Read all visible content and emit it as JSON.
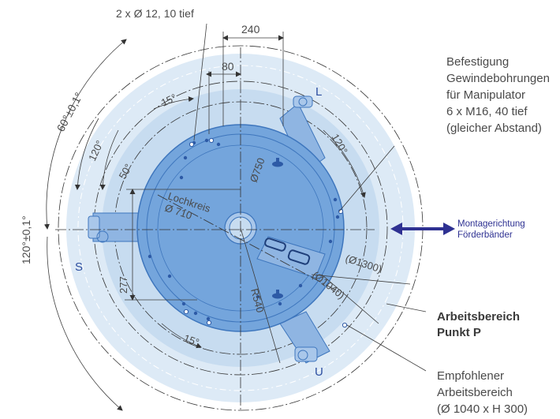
{
  "colors": {
    "outer_area": "#ddeaf6",
    "inner_area": "#c7dcf0",
    "base_plate": "#74a5dc",
    "base_edge": "#3e76bd",
    "arm": "#8fb5e2",
    "accent_letters": "#2c4ea0",
    "arrow": "#2e3192"
  },
  "dimensions": {
    "holes": "2 x Ø 12, 10 tief",
    "d240": "240",
    "d80": "80",
    "angle_15_top": "15°",
    "angle_60": "60°±0,1°",
    "angle_120_inner": "120°",
    "angle_50": "50°",
    "angle_120_outer": "120°±0,1°",
    "angle_120_right": "120°",
    "d750": "Ø750",
    "lochkreis": "Lochkreis",
    "d710": "Ø 710",
    "d277": "277",
    "r540": "R540",
    "d1300": "(Ø1300)",
    "d1040": "(Ø1040)",
    "angle_15_bottom": "15°"
  },
  "axis_labels": {
    "L": "L",
    "S": "S",
    "U": "U"
  },
  "annotations": {
    "befestigung": [
      "Befestigung",
      "Gewindebohrungen",
      "für Manipulator",
      "6 x M16, 40 tief",
      "(gleicher Abstand)"
    ],
    "montage": [
      "Montagerichtung",
      "Förderbänder"
    ],
    "arbeitsbereich_p": [
      "Arbeitsbereich",
      "Punkt P"
    ],
    "empfohlen": [
      "Empfohlener",
      "Arbeitsbereich",
      "(Ø 1040 x H 300)"
    ]
  },
  "icons": {
    "montage_arrow": "double-arrow-horizontal-icon"
  }
}
